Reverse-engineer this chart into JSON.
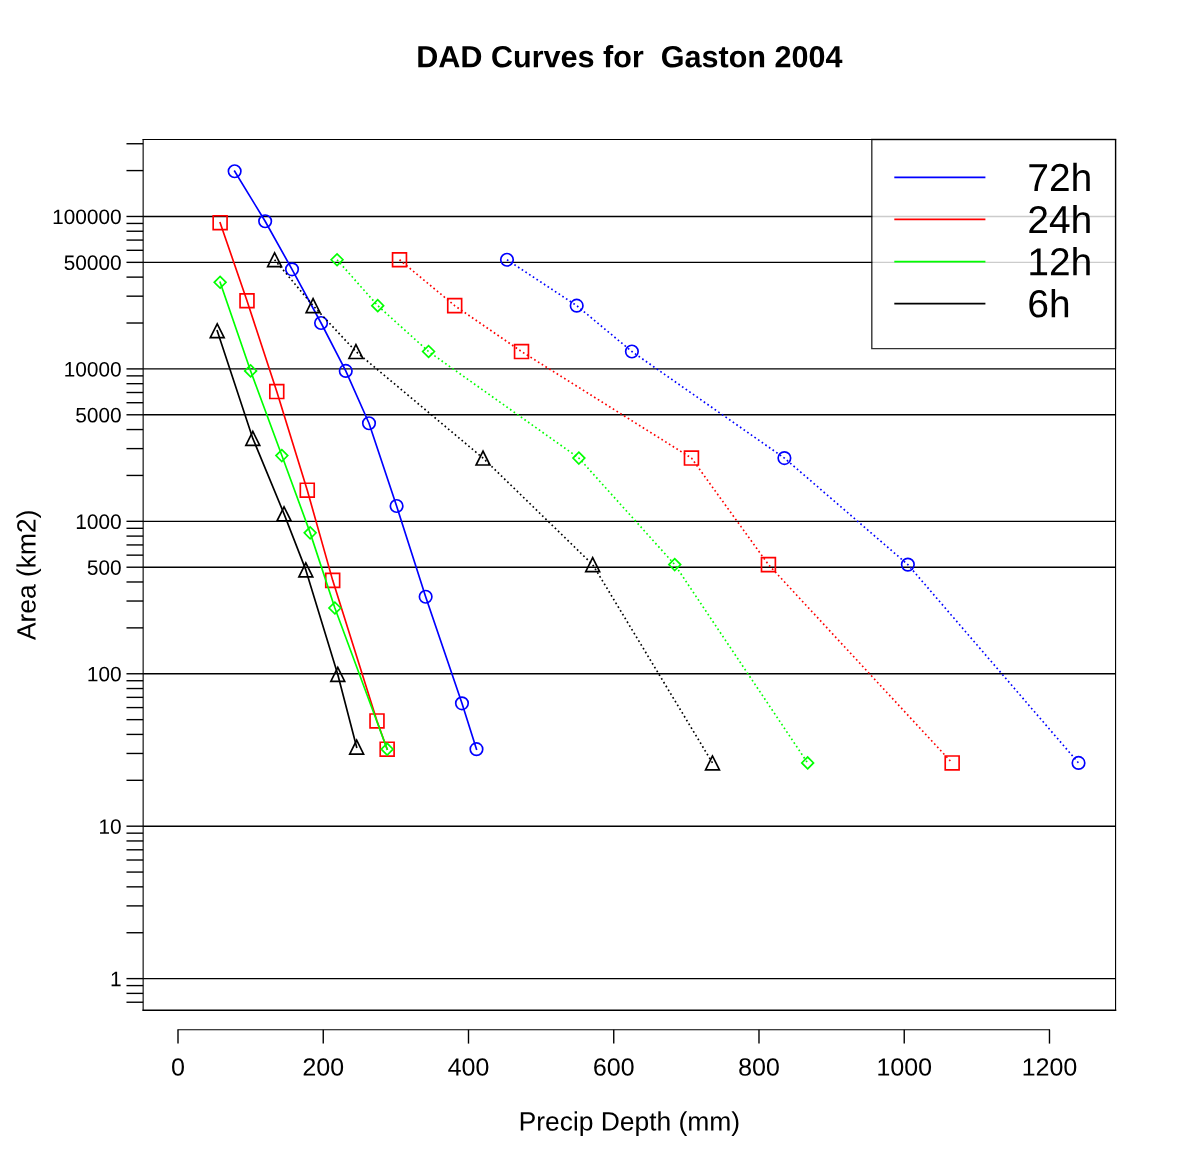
{
  "chart_data": {
    "type": "line",
    "title": "DAD Curves for  Gaston 2004",
    "xlabel": "Precip Depth (mm)",
    "ylabel": "Area (km2)",
    "log": "y",
    "xlim": [
      -48,
      1291
    ],
    "ylim": [
      0.62,
      320000
    ],
    "xticks": [
      0,
      200,
      400,
      600,
      800,
      1000,
      1200
    ],
    "yticks": [
      1,
      10,
      100,
      500,
      1000,
      5000,
      10000,
      50000,
      100000
    ],
    "ref_lines": [
      {
        "axis": "y",
        "value": 1,
        "color": "#000000"
      },
      {
        "axis": "y",
        "value": 10,
        "color": "#000000"
      },
      {
        "axis": "y",
        "value": 100,
        "color": "#000000"
      },
      {
        "axis": "y",
        "value": 500,
        "color": "#000000"
      },
      {
        "axis": "y",
        "value": 1000,
        "color": "#000000"
      },
      {
        "axis": "y",
        "value": 5000,
        "color": "#000000"
      },
      {
        "axis": "y",
        "value": 10000,
        "color": "#000000"
      },
      {
        "axis": "y",
        "value": 50000,
        "color": "#000000"
      },
      {
        "axis": "y",
        "value": 100000,
        "color": "#000000"
      }
    ],
    "legend": "top right",
    "series": [
      {
        "name": "72h",
        "color": "#0000ff",
        "marker": "circle",
        "line_style": "solid",
        "x": [
          78,
          120,
          157,
          197,
          231,
          263,
          301,
          341,
          391,
          411
        ],
        "values": [
          198000,
          93000,
          45000,
          20000,
          9700,
          4400,
          1260,
          320,
          64,
          32
        ]
      },
      {
        "name": "24h",
        "color": "#ff0000",
        "marker": "square",
        "line_style": "solid",
        "x": [
          58,
          95,
          136,
          178,
          213,
          274,
          288
        ],
        "values": [
          91000,
          28000,
          7100,
          1600,
          410,
          49,
          32
        ]
      },
      {
        "name": "12h",
        "color": "#00ff00",
        "marker": "diamond",
        "line_style": "solid",
        "x": [
          58,
          100,
          143,
          182,
          216,
          288
        ],
        "values": [
          37000,
          9700,
          2700,
          840,
          270,
          32
        ]
      },
      {
        "name": "6h",
        "color": "#000000",
        "marker": "triangle",
        "line_style": "solid",
        "x": [
          54,
          103,
          146,
          176,
          220,
          246
        ],
        "values": [
          17800,
          3500,
          1120,
          480,
          99,
          33
        ]
      },
      {
        "color": "#0000ff",
        "marker": "circle",
        "line_style": "dotted",
        "x": [
          453,
          549,
          625,
          835,
          1005,
          1240
        ],
        "values": [
          52000,
          26000,
          13000,
          2600,
          520,
          26
        ]
      },
      {
        "color": "#ff0000",
        "marker": "square",
        "line_style": "dotted",
        "x": [
          305,
          381,
          473,
          707,
          813,
          1066
        ],
        "values": [
          52000,
          26000,
          13000,
          2600,
          520,
          26
        ]
      },
      {
        "color": "#00ff00",
        "marker": "diamond",
        "line_style": "dotted",
        "x": [
          219,
          275,
          345,
          552,
          684,
          867
        ],
        "values": [
          52000,
          26000,
          13000,
          2600,
          520,
          26
        ]
      },
      {
        "color": "#000000",
        "marker": "triangle",
        "line_style": "dotted",
        "x": [
          133,
          186,
          245,
          420,
          571,
          736
        ],
        "values": [
          52000,
          26000,
          13000,
          2600,
          520,
          26
        ]
      }
    ]
  }
}
